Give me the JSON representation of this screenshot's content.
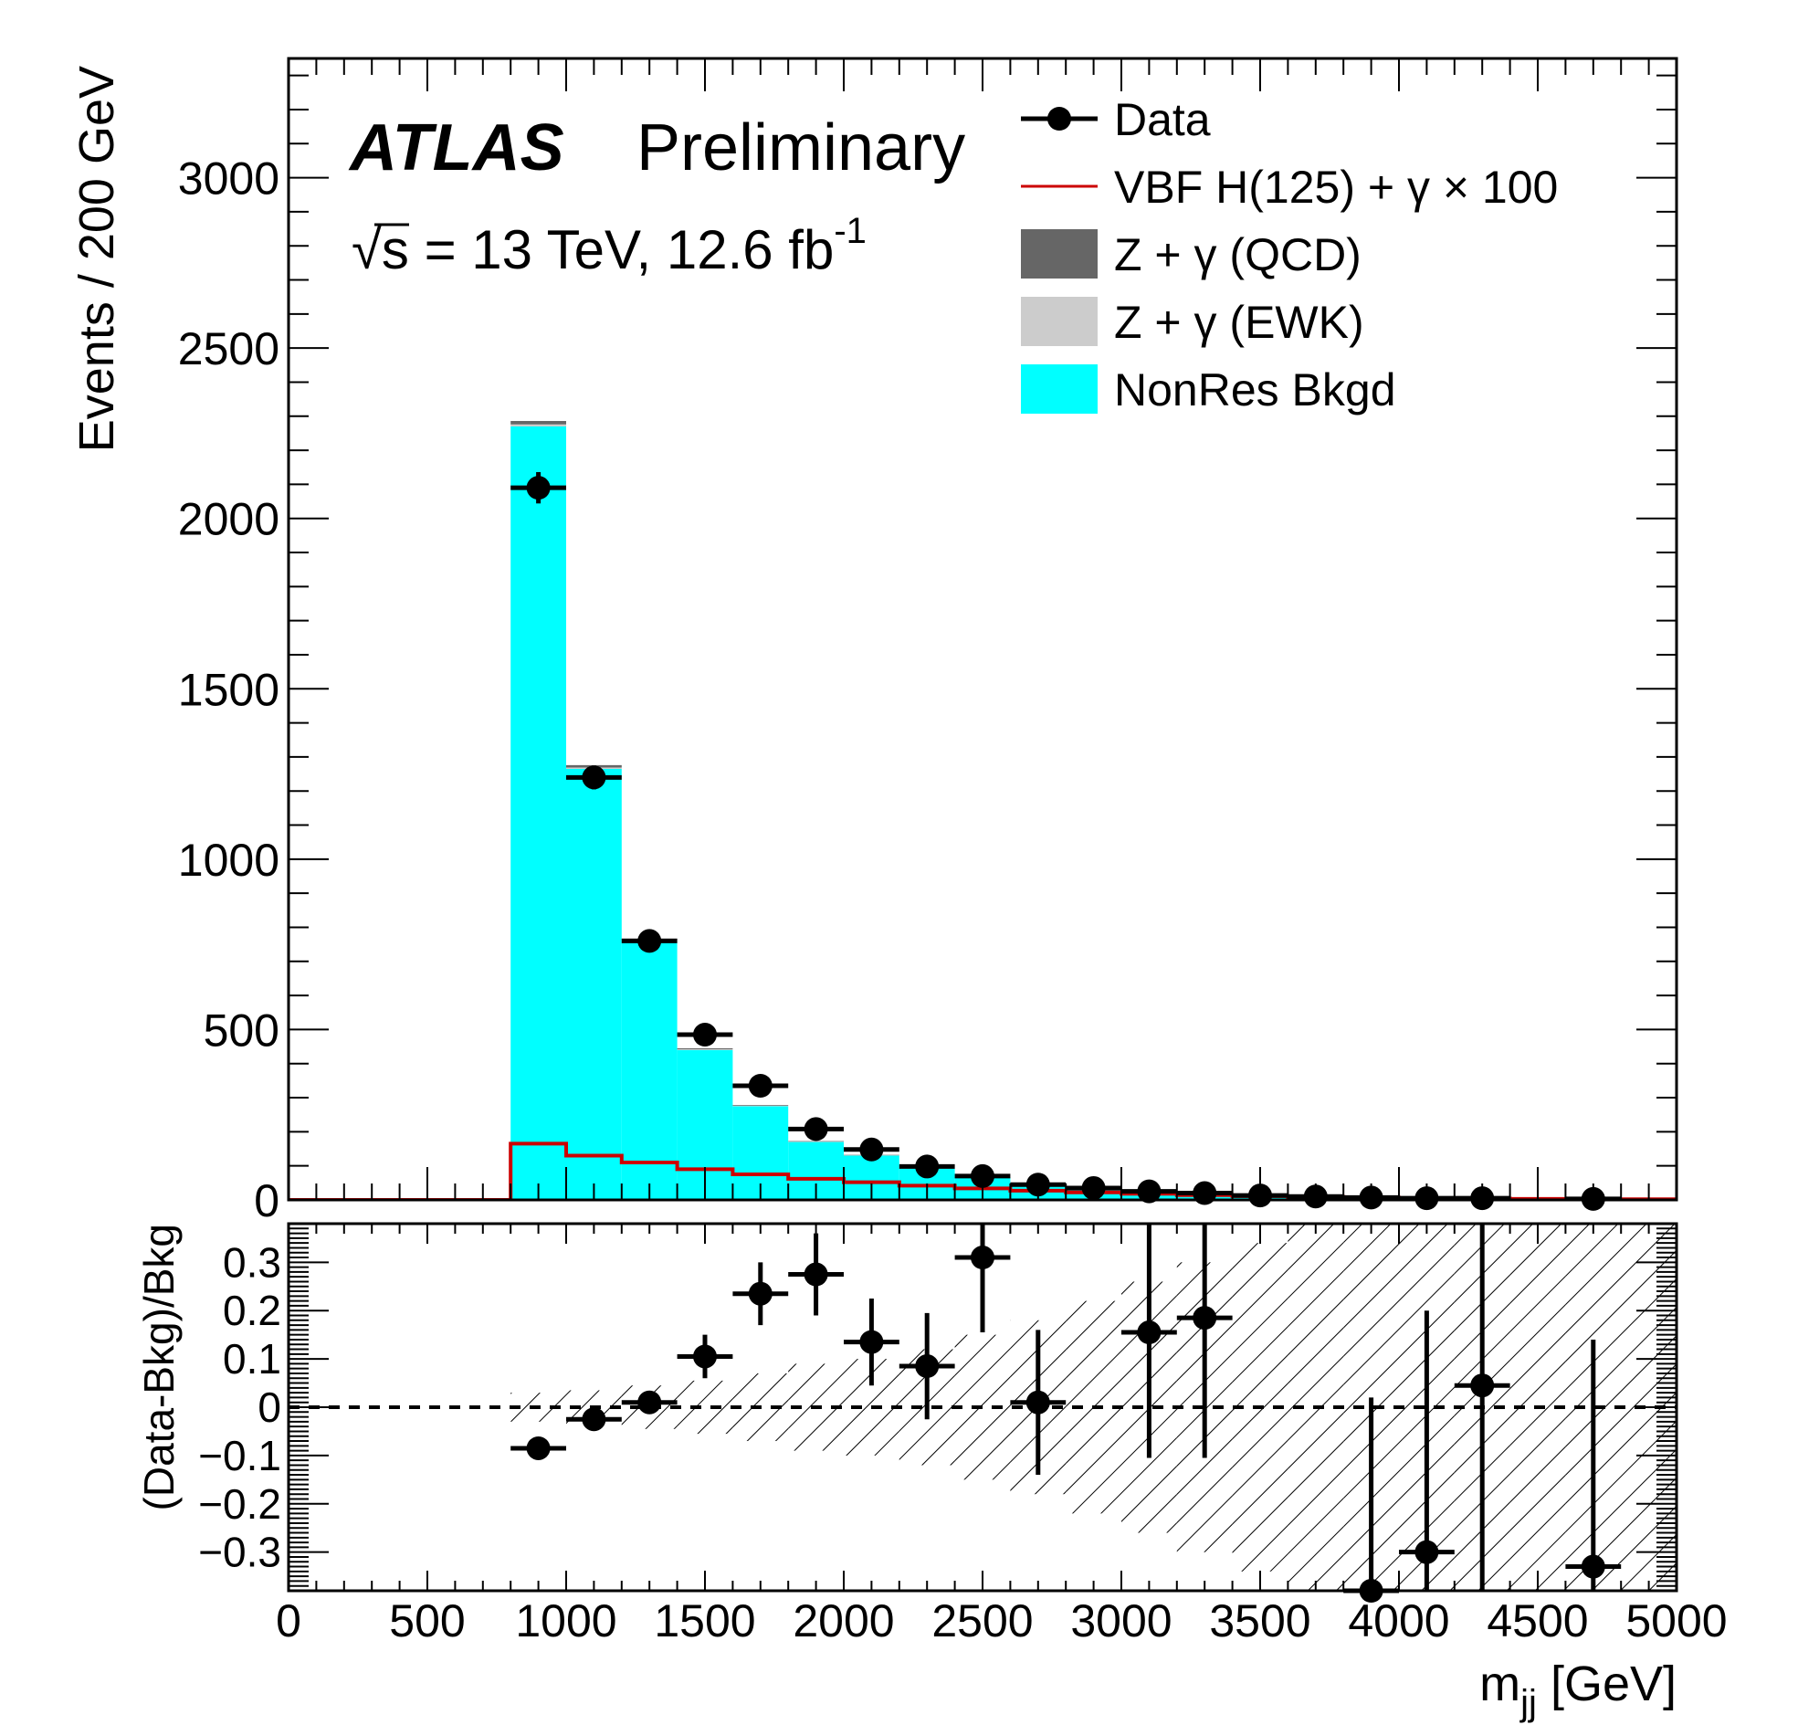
{
  "chart_data": [
    {
      "type": "bar",
      "title": "",
      "atlas_label": "ATLAS",
      "status_label": "Preliminary",
      "energy_label": "√s = 13 TeV, 12.6 fb",
      "energy_sup": "-1",
      "xlabel": "m",
      "xlabel_sub": "jj",
      "xlabel_unit": " [GeV]",
      "ylabel": "Events / 200 GeV",
      "xlim": [
        0,
        5000
      ],
      "ylim": [
        0,
        3350
      ],
      "x_ticks": [
        0,
        500,
        1000,
        1500,
        2000,
        2500,
        3000,
        3500,
        4000,
        4500,
        5000
      ],
      "y_ticks": [
        0,
        500,
        1000,
        1500,
        2000,
        2500,
        3000
      ],
      "y_tick_labels": [
        "0",
        "500",
        "1000",
        "1500",
        "2000",
        "2500",
        "3000"
      ],
      "bin_edges": [
        800,
        1000,
        1200,
        1400,
        1600,
        1800,
        2000,
        2200,
        2400,
        2600,
        2800,
        3000,
        3200,
        3400,
        3600,
        3800,
        4000,
        4200,
        4400,
        4600,
        5000
      ],
      "series": [
        {
          "name": "NonRes Bkgd",
          "color": "#00ffff",
          "values": [
            2270,
            1265,
            760,
            440,
            275,
            170,
            130,
            92,
            65,
            48,
            35,
            25,
            18,
            13,
            10,
            8,
            6,
            4,
            3,
            2
          ]
        },
        {
          "name": "Z + γ (EWK)",
          "color": "#cccccc",
          "values": [
            6,
            4,
            3,
            2,
            1.5,
            1.2,
            1,
            0.8,
            0.6,
            0.5,
            0.4,
            0.3,
            0.3,
            0.2,
            0.2,
            0.1,
            0.1,
            0.1,
            0.1,
            0.1
          ]
        },
        {
          "name": "Z + γ (QCD)",
          "color": "#666666",
          "values": [
            10,
            7,
            4,
            3,
            2,
            1.5,
            1.2,
            1,
            0.8,
            0.6,
            0.5,
            0.4,
            0.3,
            0.3,
            0.2,
            0.2,
            0.1,
            0.1,
            0.1,
            0.1
          ]
        },
        {
          "name": "VBF H(125) + γ × 100",
          "color": "#cc0000",
          "values": [
            165,
            130,
            110,
            90,
            75,
            62,
            52,
            42,
            34,
            27,
            22,
            18,
            14,
            11,
            9,
            7,
            5,
            4,
            3,
            2
          ]
        }
      ],
      "data_points": {
        "name": "Data",
        "x": [
          900,
          1100,
          1300,
          1500,
          1700,
          1900,
          2100,
          2300,
          2500,
          2700,
          2900,
          3100,
          3300,
          3500,
          3700,
          3900,
          4100,
          4300,
          4700
        ],
        "y": [
          2090,
          1240,
          760,
          485,
          335,
          208,
          148,
          98,
          70,
          45,
          35,
          25,
          20,
          13,
          10,
          7,
          5,
          5,
          3
        ],
        "err": [
          46,
          35,
          28,
          22,
          18,
          14,
          12,
          10,
          8,
          7,
          6,
          5,
          4.5,
          3.6,
          3.2,
          2.6,
          2.2,
          2.2,
          1.7
        ]
      },
      "legend": [
        {
          "label": "Data",
          "kind": "marker",
          "color": "#000000"
        },
        {
          "label": "VBF H(125) + γ × 100",
          "kind": "line",
          "color": "#cc0000"
        },
        {
          "label": "Z + γ (QCD)",
          "kind": "box",
          "color": "#666666"
        },
        {
          "label": "Z + γ (EWK)",
          "kind": "box",
          "color": "#cccccc"
        },
        {
          "label": "NonRes Bkgd",
          "kind": "box",
          "color": "#00ffff"
        }
      ],
      "legend_position": "top-right"
    },
    {
      "type": "scatter",
      "title": "",
      "ylabel": "(Data-Bkg)/Bkg",
      "xlim": [
        0,
        5000
      ],
      "ylim": [
        -0.38,
        0.38
      ],
      "x_ticks": [
        0,
        500,
        1000,
        1500,
        2000,
        2500,
        3000,
        3500,
        4000,
        4500,
        5000
      ],
      "x_tick_labels": [
        "0",
        "500",
        "1000",
        "1500",
        "2000",
        "2500",
        "3000",
        "3500",
        "4000",
        "4500",
        "5000"
      ],
      "y_ticks": [
        -0.3,
        -0.2,
        -0.1,
        0,
        0.1,
        0.2,
        0.3
      ],
      "y_tick_labels": [
        "−0.3",
        "−0.2",
        "−0.1",
        "0",
        "0.1",
        "0.2",
        "0.3"
      ],
      "reference_line": 0,
      "uncertainty_band": {
        "bin_edges": [
          800,
          1000,
          1200,
          1400,
          1600,
          1800,
          2000,
          2200,
          2400,
          2600,
          2800,
          3000,
          3200,
          3400,
          3600,
          3800,
          4000,
          4200,
          4400,
          4600,
          5000
        ],
        "half_width": [
          0.03,
          0.035,
          0.045,
          0.055,
          0.07,
          0.09,
          0.1,
          0.12,
          0.15,
          0.18,
          0.22,
          0.26,
          0.3,
          0.34,
          0.38,
          0.38,
          0.38,
          0.38,
          0.38,
          0.38
        ]
      },
      "points": {
        "x": [
          900,
          1100,
          1300,
          1500,
          1700,
          1900,
          2100,
          2300,
          2500,
          2700,
          3100,
          3300,
          3900,
          4100,
          4300,
          4700
        ],
        "y": [
          -0.085,
          -0.025,
          0.01,
          0.105,
          0.235,
          0.275,
          0.135,
          0.085,
          0.31,
          0.01,
          0.155,
          0.185,
          -0.38,
          -0.3,
          0.045,
          -0.33
        ],
        "err": [
          0.012,
          0.015,
          0.02,
          0.045,
          0.065,
          0.085,
          0.09,
          0.11,
          0.155,
          0.15,
          0.26,
          0.29,
          0.4,
          0.5,
          0.55,
          0.47
        ]
      }
    }
  ]
}
